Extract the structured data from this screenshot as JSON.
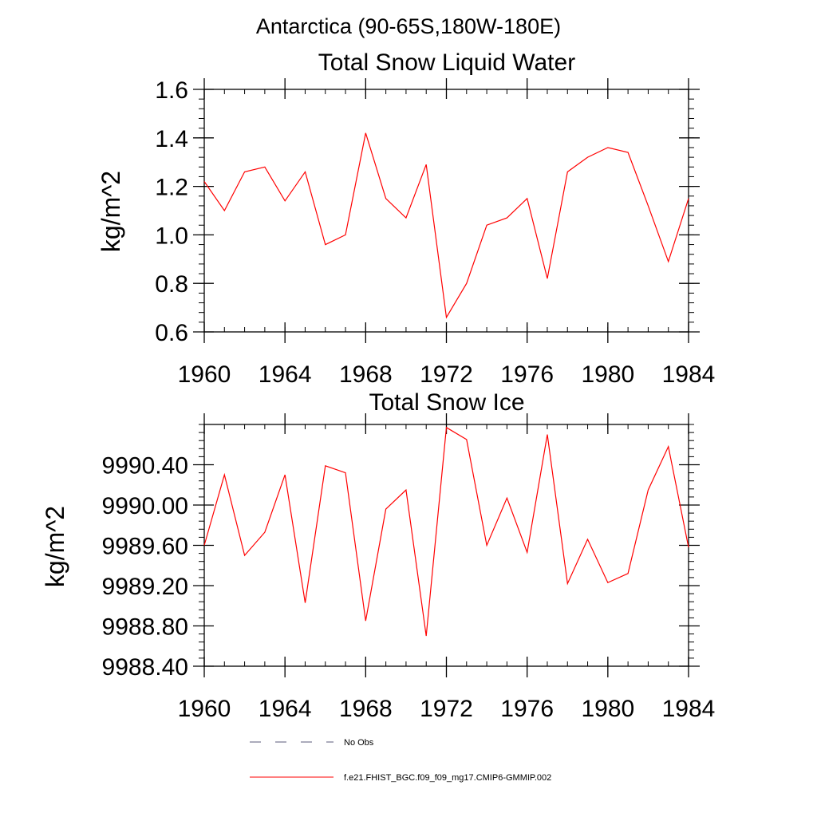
{
  "figure": {
    "main_title": "Antarctica (90-65S,180W-180E)",
    "line_color": "#ff0000",
    "obs_line_color": "#5a5a7a"
  },
  "chart_data": [
    {
      "type": "line",
      "title": "Total Snow Liquid Water",
      "xlabel": "",
      "ylabel": "kg/m^2",
      "xlim": [
        1960,
        1984
      ],
      "ylim": [
        0.6,
        1.6
      ],
      "x_ticks": [
        1960,
        1964,
        1968,
        1972,
        1976,
        1980,
        1984
      ],
      "x_tick_labels": [
        "1960",
        "1964",
        "1968",
        "1972",
        "1976",
        "1980",
        "1984"
      ],
      "y_ticks": [
        0.6,
        0.8,
        1.0,
        1.2,
        1.4,
        1.6
      ],
      "y_tick_labels": [
        "0.6",
        "0.8",
        "1.0",
        "1.2",
        "1.4",
        "1.6"
      ],
      "y_minor_step": 0.04,
      "x_minor_step": 1,
      "series": [
        {
          "name": "f.e21.FHIST_BGC.f09_f09_mg17.CMIP6-GMMIP.002",
          "color": "#ff0000",
          "x": [
            1960,
            1961,
            1962,
            1963,
            1964,
            1965,
            1966,
            1967,
            1968,
            1969,
            1970,
            1971,
            1972,
            1973,
            1974,
            1975,
            1976,
            1977,
            1978,
            1979,
            1980,
            1981,
            1982,
            1983,
            1984
          ],
          "values": [
            1.22,
            1.1,
            1.26,
            1.28,
            1.14,
            1.26,
            0.96,
            1.0,
            1.42,
            1.15,
            1.07,
            1.29,
            0.66,
            0.8,
            1.04,
            1.07,
            1.15,
            0.82,
            1.26,
            1.32,
            1.36,
            1.34,
            1.12,
            0.89,
            1.15
          ]
        }
      ]
    },
    {
      "type": "line",
      "title": "Total Snow Ice",
      "xlabel": "",
      "ylabel": "kg/m^2",
      "xlim": [
        1960,
        1984
      ],
      "ylim": [
        9988.4,
        9990.8
      ],
      "x_ticks": [
        1960,
        1964,
        1968,
        1972,
        1976,
        1980,
        1984
      ],
      "x_tick_labels": [
        "1960",
        "1964",
        "1968",
        "1972",
        "1976",
        "1980",
        "1984"
      ],
      "y_ticks": [
        9988.4,
        9988.8,
        9989.2,
        9989.6,
        9990.0,
        9990.4
      ],
      "y_tick_labels": [
        "9988.40",
        "9988.80",
        "9989.20",
        "9989.60",
        "9990.00",
        "9990.40"
      ],
      "y_minor_step": 0.08,
      "x_minor_step": 1,
      "series": [
        {
          "name": "f.e21.FHIST_BGC.f09_f09_mg17.CMIP6-GMMIP.002",
          "color": "#ff0000",
          "x": [
            1960,
            1961,
            1962,
            1963,
            1964,
            1965,
            1966,
            1967,
            1968,
            1969,
            1970,
            1971,
            1972,
            1973,
            1974,
            1975,
            1976,
            1977,
            1978,
            1979,
            1980,
            1981,
            1982,
            1983,
            1984
          ],
          "values": [
            9989.6,
            9990.3,
            9989.5,
            9989.73,
            9990.3,
            9989.03,
            9990.39,
            9990.32,
            9988.85,
            9989.96,
            9990.15,
            9988.7,
            9990.77,
            9990.65,
            9989.6,
            9990.07,
            9989.53,
            9990.7,
            9989.22,
            9989.66,
            9989.23,
            9989.32,
            9990.15,
            9990.58,
            9989.58
          ]
        }
      ]
    }
  ],
  "legend": {
    "items": [
      {
        "label": "No Obs",
        "style": "dashed",
        "color": "#5a5a7a"
      },
      {
        "label": "f.e21.FHIST_BGC.f09_f09_mg17.CMIP6-GMMIP.002",
        "style": "solid",
        "color": "#ff0000"
      }
    ]
  }
}
